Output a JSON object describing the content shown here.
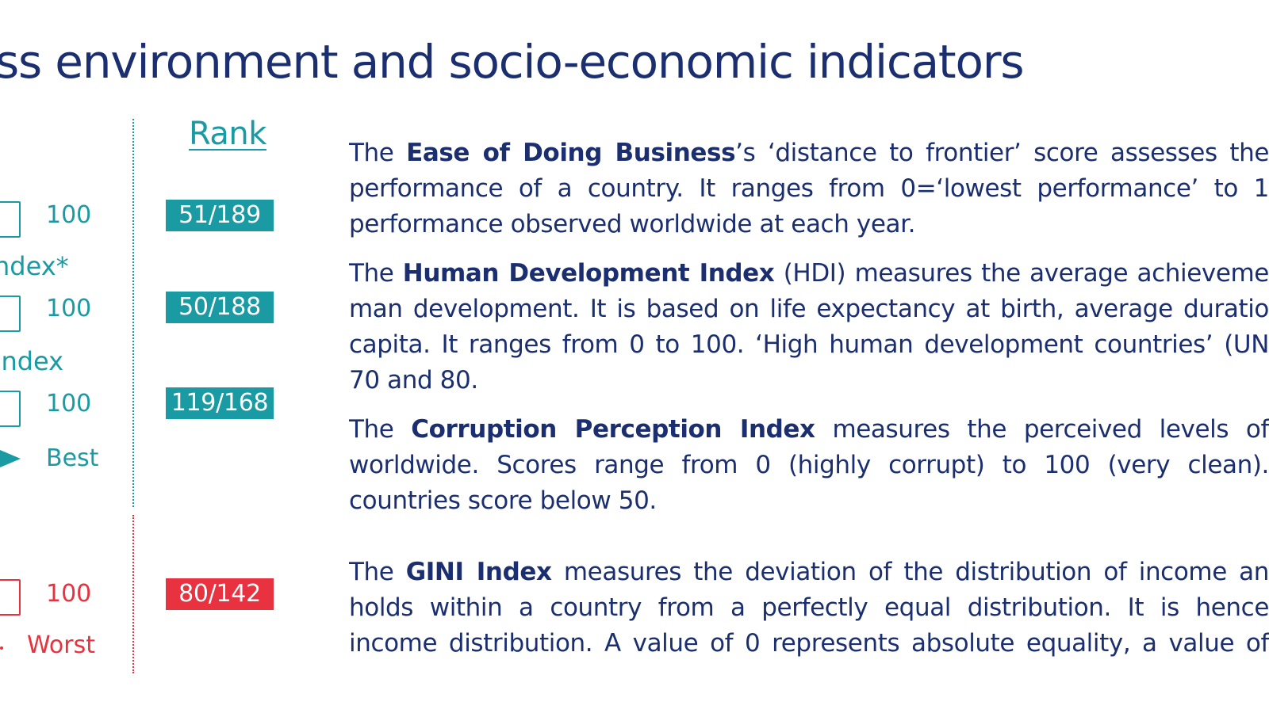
{
  "title": "ss environment and socio-economic indicators",
  "rank_header": "Rank",
  "scale_rows": [
    {
      "scale_max": "100",
      "rank": "51/189",
      "rank_color": "#1a9aa2"
    },
    {
      "label": "ndex*",
      "scale_max": "100",
      "rank": "50/188",
      "rank_color": "#1a9aa2"
    },
    {
      "label": "Index",
      "scale_max": "100",
      "rank": "119/168",
      "rank_color": "#1a9aa2"
    },
    {
      "scale_max": "100",
      "rank": "80/142",
      "rank_color": "#e8323f"
    }
  ],
  "best_label": "Best",
  "worst_label": "Worst",
  "colors": {
    "title": "#1b2f70",
    "teal": "#1a9aa2",
    "red": "#e8323f",
    "text": "#1b2f70"
  },
  "paragraphs": {
    "ease": {
      "l1_pre": "The ",
      "l1_bold": "Ease of Doing Business",
      "l1_post": "’s ‘distance to frontier’ score assesses the",
      "l2": "performance of a country. It ranges from 0=‘lowest performance’ to 1",
      "l3": "performance observed worldwide at each year."
    },
    "hdi": {
      "l1_pre": "The ",
      "l1_bold": "Human Development Index",
      "l1_post": " (HDI) measures the average achieveme",
      "l2": "man development. It is based on life expectancy at birth, average duratio",
      "l3": "capita. It ranges from 0 to 100. ‘High human development countries’ (UN",
      "l4": "70 and 80."
    },
    "cpi": {
      "l1_pre": "The ",
      "l1_bold": "Corruption Perception Index",
      "l1_post": " measures the perceived levels of",
      "l2": "worldwide. Scores range from 0 (highly corrupt) to 100 (very clean).",
      "l3": "countries score below 50."
    },
    "gini": {
      "l1_pre": "The ",
      "l1_bold": "GINI Index",
      "l1_post": " measures the deviation of the distribution of income an",
      "l2": "holds within a country from a perfectly equal distribution. It is hence",
      "l3": "income distribution. A value of 0 represents absolute equality, a value of"
    }
  }
}
